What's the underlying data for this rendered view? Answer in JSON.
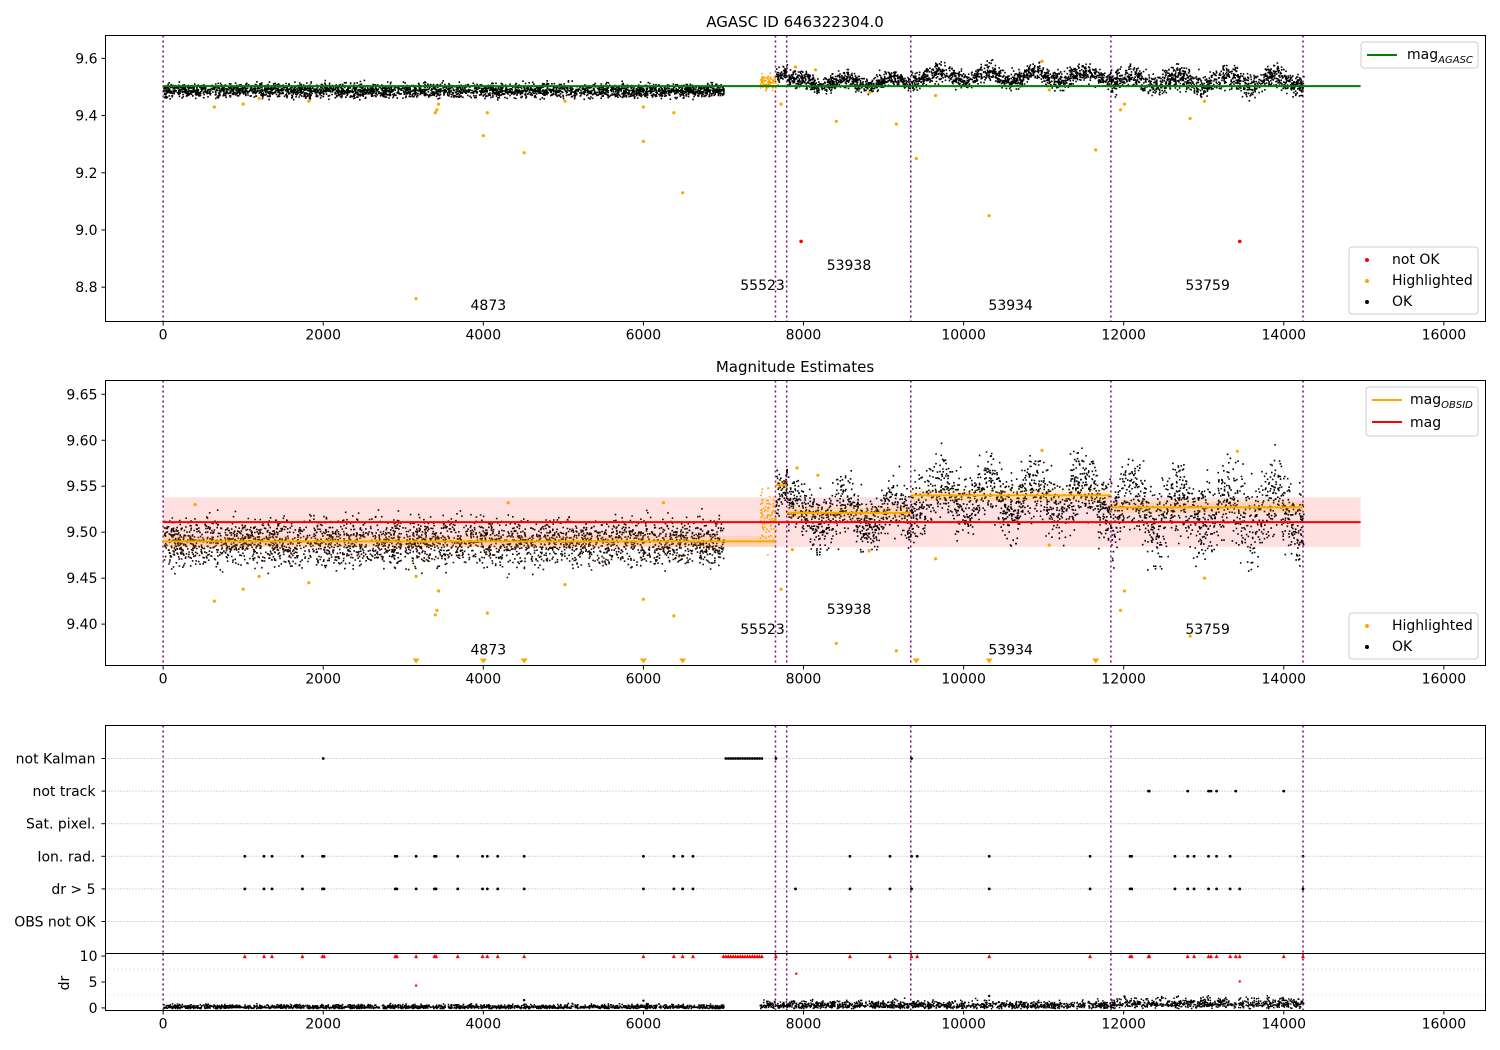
{
  "chart_data": [
    {
      "type": "scatter",
      "title": "AGASC ID 646322304.0",
      "xlim": [
        -720,
        16520
      ],
      "ylim": [
        8.68,
        9.68
      ],
      "xticks": [
        0,
        2000,
        4000,
        6000,
        8000,
        10000,
        12000,
        14000,
        16000
      ],
      "xtick_labels": [
        "0",
        "2000",
        "4000",
        "6000",
        "8000",
        "10000",
        "12000",
        "14000",
        "16000"
      ],
      "yticks": [
        8.8,
        9.0,
        9.2,
        9.4,
        9.6
      ],
      "ytick_labels": [
        "8.8",
        "9.0",
        "9.2",
        "9.4",
        "9.6"
      ],
      "grid": false,
      "obs_boundaries": [
        0,
        7650,
        7790,
        9340,
        11840,
        14240
      ],
      "obs_labels": [
        {
          "x": 3840,
          "y": 8.72,
          "text": "4873"
        },
        {
          "x": 7210,
          "y": 8.79,
          "text": "55523"
        },
        {
          "x": 8290,
          "y": 8.86,
          "text": "53938"
        },
        {
          "x": 10310,
          "y": 8.72,
          "text": "53934"
        },
        {
          "x": 12770,
          "y": 8.79,
          "text": "53759"
        }
      ],
      "mag_agasc": {
        "value": 9.503,
        "x": [
          0,
          14960
        ],
        "color": "#008000"
      },
      "segments": [
        {
          "x": [
            0,
            7000
          ],
          "center": 9.49,
          "scatter": 0.012
        },
        {
          "x": [
            7450,
            7650
          ],
          "center": 9.52,
          "scatter": 0.015
        },
        {
          "x": [
            7650,
            7790
          ],
          "center": 9.55,
          "scatter": 0.012
        },
        {
          "x": [
            7790,
            9340
          ],
          "center": 9.52,
          "scatter": 0.014
        },
        {
          "x": [
            9340,
            11840
          ],
          "center": 9.54,
          "scatter": 0.016
        },
        {
          "x": [
            11840,
            14240
          ],
          "center": 9.525,
          "scatter": 0.02
        }
      ],
      "highlighted": [
        [
          3160,
          8.76
        ],
        [
          3400,
          9.41
        ],
        [
          3420,
          9.42
        ],
        [
          3440,
          9.44
        ],
        [
          4000,
          9.33
        ],
        [
          4050,
          9.41
        ],
        [
          4510,
          9.27
        ],
        [
          6000,
          9.31
        ],
        [
          6000,
          9.43
        ],
        [
          6380,
          9.41
        ],
        [
          6490,
          9.13
        ],
        [
          640,
          9.43
        ],
        [
          1000,
          9.44
        ],
        [
          1200,
          9.46
        ],
        [
          1820,
          9.45
        ],
        [
          5020,
          9.45
        ],
        [
          7720,
          9.44
        ],
        [
          7900,
          9.57
        ],
        [
          8410,
          9.38
        ],
        [
          8820,
          9.48
        ],
        [
          9160,
          9.37
        ],
        [
          9410,
          9.25
        ],
        [
          9650,
          9.47
        ],
        [
          10320,
          9.05
        ],
        [
          11070,
          9.49
        ],
        [
          11650,
          9.28
        ],
        [
          11960,
          9.42
        ],
        [
          12010,
          9.44
        ],
        [
          12830,
          9.39
        ],
        [
          13010,
          9.45
        ],
        [
          8150,
          9.56
        ],
        [
          10980,
          9.59
        ]
      ],
      "not_ok": [
        [
          7970,
          8.96
        ],
        [
          13450,
          8.96
        ]
      ],
      "legend": {
        "lines": [
          {
            "label": "mag",
            "sub": "AGASC",
            "color": "#008000"
          }
        ],
        "markers": [
          {
            "label": "not OK",
            "color": "#ff0000"
          },
          {
            "label": "Highlighted",
            "color": "#ffa500"
          },
          {
            "label": "OK",
            "color": "#000000"
          }
        ]
      }
    },
    {
      "type": "scatter",
      "title": "Magnitude Estimates",
      "xlim": [
        -720,
        16520
      ],
      "ylim": [
        9.355,
        9.665
      ],
      "xticks": [
        0,
        2000,
        4000,
        6000,
        8000,
        10000,
        12000,
        14000,
        16000
      ],
      "xtick_labels": [
        "0",
        "2000",
        "4000",
        "6000",
        "8000",
        "10000",
        "12000",
        "14000",
        "16000"
      ],
      "yticks": [
        9.4,
        9.45,
        9.5,
        9.55,
        9.6,
        9.65
      ],
      "ytick_labels": [
        "9.40",
        "9.45",
        "9.50",
        "9.55",
        "9.60",
        "9.65"
      ],
      "grid": false,
      "obs_labels": [
        {
          "x": 3840,
          "y": 9.367,
          "text": "4873"
        },
        {
          "x": 7210,
          "y": 9.389,
          "text": "55523"
        },
        {
          "x": 8290,
          "y": 9.411,
          "text": "53938"
        },
        {
          "x": 10310,
          "y": 9.367,
          "text": "53934"
        },
        {
          "x": 12770,
          "y": 9.389,
          "text": "53759"
        }
      ],
      "mag": {
        "value": 9.511,
        "band": [
          9.484,
          9.538
        ],
        "x": [
          0,
          14960
        ],
        "color": "#ff0000"
      },
      "mag_obsid": [
        {
          "x": [
            0,
            7650
          ],
          "value": 9.49
        },
        {
          "x": [
            7650,
            7790
          ],
          "value": 9.551
        },
        {
          "x": [
            7790,
            9340
          ],
          "value": 9.521
        },
        {
          "x": [
            9340,
            11840
          ],
          "value": 9.54
        },
        {
          "x": [
            11840,
            14240
          ],
          "value": 9.527
        }
      ],
      "highlighted": [
        [
          640,
          9.425
        ],
        [
          1000,
          9.438
        ],
        [
          1200,
          9.452
        ],
        [
          1820,
          9.445
        ],
        [
          3160,
          9.452
        ],
        [
          3400,
          9.41
        ],
        [
          3420,
          9.415
        ],
        [
          3440,
          9.436
        ],
        [
          4050,
          9.412
        ],
        [
          5020,
          9.443
        ],
        [
          6000,
          9.427
        ],
        [
          6380,
          9.409
        ],
        [
          400,
          9.53
        ],
        [
          4310,
          9.532
        ],
        [
          6250,
          9.532
        ],
        [
          7720,
          9.438
        ],
        [
          7920,
          9.57
        ],
        [
          8180,
          9.562
        ],
        [
          8410,
          9.379
        ],
        [
          8820,
          9.48
        ],
        [
          9160,
          9.371
        ],
        [
          9650,
          9.471
        ],
        [
          11070,
          9.486
        ],
        [
          11960,
          9.415
        ],
        [
          12010,
          9.436
        ],
        [
          12830,
          9.387
        ],
        [
          13010,
          9.45
        ],
        [
          13420,
          9.588
        ],
        [
          10980,
          9.589
        ],
        [
          7860,
          9.481
        ]
      ],
      "below_range": [
        3160,
        4000,
        4510,
        6000,
        6490,
        9410,
        10320,
        11650
      ],
      "legend": {
        "lines": [
          {
            "label": "mag",
            "sub": "OBSID",
            "color": "#ffa500"
          },
          {
            "label": "mag",
            "sub": "",
            "color": "#ff0000"
          }
        ],
        "markers": [
          {
            "label": "Highlighted",
            "color": "#ffa500"
          },
          {
            "label": "OK",
            "color": "#000000"
          }
        ]
      }
    },
    {
      "type": "scatter",
      "title": "",
      "xlim": [
        -720,
        16520
      ],
      "categories": [
        "not Kalman",
        "not track",
        "Sat. pixel.",
        "Ion. rad.",
        "dr > 5",
        "OBS not OK"
      ],
      "flags": {
        "not Kalman": [
          2000,
          7030,
          7060,
          7090,
          7120,
          7150,
          7180,
          7210,
          7240,
          7270,
          7300,
          7330,
          7360,
          7390,
          7420,
          7450,
          7480,
          7655,
          9350
        ],
        "not track": [
          12310,
          12320,
          12800,
          13060,
          13090,
          13160,
          13400,
          14000
        ],
        "Sat. pixel.": [],
        "Ion. rad.": [
          1020,
          1260,
          1360,
          1740,
          1990,
          2010,
          2900,
          2920,
          3160,
          3390,
          3410,
          3680,
          3990,
          4050,
          4180,
          4510,
          6000,
          6380,
          6490,
          6620,
          8580,
          9080,
          9350,
          9420,
          10320,
          11580,
          12080,
          12100,
          12640,
          12800,
          12880,
          13060,
          13160,
          13330,
          14240
        ],
        "dr > 5": [
          1020,
          1260,
          1360,
          1740,
          1990,
          2010,
          2900,
          2920,
          3160,
          3390,
          3410,
          3680,
          3990,
          4050,
          4180,
          4510,
          6000,
          6380,
          6490,
          6620,
          7900,
          8580,
          9080,
          9350,
          10320,
          11580,
          12080,
          12100,
          12640,
          12800,
          12880,
          13060,
          13160,
          13330,
          13450,
          14240
        ],
        "OBS not OK": []
      }
    },
    {
      "type": "scatter",
      "title": "",
      "xlim": [
        -720,
        16520
      ],
      "ylim": [
        -0.5,
        10.5
      ],
      "ylabel": "dr",
      "yticks": [
        0,
        5,
        10
      ],
      "ytick_labels": [
        "0",
        "5",
        "10"
      ],
      "segments": [
        {
          "x": [
            0,
            7000
          ],
          "mean": 0.3,
          "spread": 0.25
        },
        {
          "x": [
            7450,
            11840
          ],
          "mean": 0.6,
          "spread": 0.45
        },
        {
          "x": [
            11840,
            14240
          ],
          "mean": 0.9,
          "spread": 0.6
        }
      ],
      "outliers": [
        [
          3160,
          4.3
        ],
        [
          7910,
          6.6
        ],
        [
          10320,
          2.3
        ],
        [
          13450,
          5.1
        ],
        [
          4510,
          1.5
        ],
        [
          12010,
          2.2
        ],
        [
          6000,
          1.4
        ]
      ],
      "clipped": [
        1020,
        1260,
        1360,
        1740,
        1990,
        2010,
        2900,
        2920,
        3160,
        3390,
        3410,
        3680,
        3990,
        4050,
        4180,
        4510,
        6000,
        6380,
        6490,
        6620,
        7000,
        7030,
        7060,
        7090,
        7120,
        7150,
        7180,
        7210,
        7240,
        7270,
        7300,
        7330,
        7360,
        7390,
        7420,
        7450,
        7480,
        7655,
        8580,
        9080,
        9350,
        9420,
        10320,
        11580,
        12080,
        12100,
        12310,
        12320,
        12800,
        12880,
        13060,
        13090,
        13160,
        13330,
        13400,
        13450,
        14000,
        14240
      ]
    }
  ]
}
